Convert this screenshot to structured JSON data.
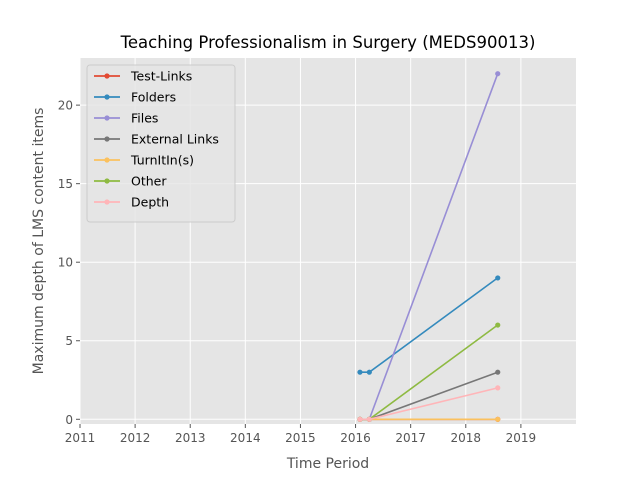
{
  "chart_data": {
    "type": "line",
    "title": "Teaching Professionalism in Surgery (MEDS90013)",
    "xlabel": "Time Period",
    "ylabel": "Maximum depth of LMS content items",
    "x_ticks": [
      "2011",
      "2012",
      "2013",
      "2014",
      "2015",
      "2016",
      "2017",
      "2018",
      "2019"
    ],
    "y_ticks": [
      "0",
      "5",
      "10",
      "15",
      "20"
    ],
    "xlim": [
      2011.0,
      2020.0
    ],
    "ylim": [
      -0.3,
      23.0
    ],
    "grid": true,
    "legend_position": "upper-left",
    "series": [
      {
        "name": "Test-Links",
        "color": "#E24A33",
        "x": [
          2016.08,
          2016.25,
          2018.58
        ],
        "y": [
          0,
          0,
          0
        ]
      },
      {
        "name": "Folders",
        "color": "#348ABD",
        "x": [
          2016.08,
          2016.25,
          2018.58
        ],
        "y": [
          3,
          3,
          9
        ]
      },
      {
        "name": "Files",
        "color": "#988ED5",
        "x": [
          2016.08,
          2016.25,
          2018.58
        ],
        "y": [
          0,
          0,
          22
        ]
      },
      {
        "name": "External Links",
        "color": "#777777",
        "x": [
          2016.08,
          2016.25,
          2018.58
        ],
        "y": [
          0,
          0,
          3
        ]
      },
      {
        "name": "TurnItIn(s)",
        "color": "#FBC15E",
        "x": [
          2016.08,
          2016.25,
          2018.58
        ],
        "y": [
          0,
          0,
          0
        ]
      },
      {
        "name": "Other",
        "color": "#8EBA42",
        "x": [
          2016.08,
          2016.25,
          2018.58
        ],
        "y": [
          0,
          0,
          6
        ]
      },
      {
        "name": "Depth",
        "color": "#FFB5B8",
        "x": [
          2016.08,
          2016.25,
          2018.58
        ],
        "y": [
          0,
          0,
          2
        ]
      }
    ]
  }
}
